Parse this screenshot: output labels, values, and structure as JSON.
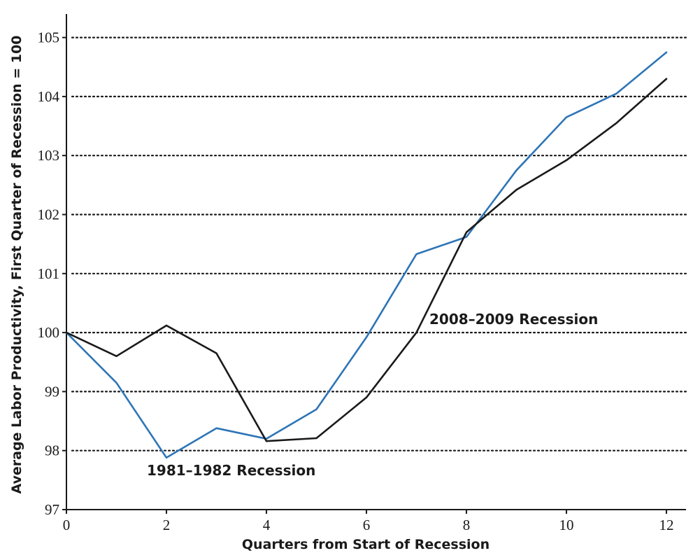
{
  "chart_data": {
    "type": "line",
    "xlabel": "Quarters from Start of Recession",
    "ylabel": "Average Labor Productivity, First Quarter of Recession = 100",
    "xlim": [
      0,
      12.3
    ],
    "ylim": [
      97,
      105.4
    ],
    "x_ticks": [
      0,
      2,
      4,
      6,
      8,
      10,
      12
    ],
    "y_ticks": [
      97,
      98,
      99,
      100,
      101,
      102,
      103,
      104,
      105
    ],
    "grid": "horizontal dotted",
    "x": [
      0,
      1,
      2,
      3,
      4,
      5,
      6,
      7,
      8,
      9,
      10,
      11,
      12
    ],
    "series": [
      {
        "name": "1981–1982 Recession",
        "color": "#2e75b6",
        "values": [
          100.0,
          99.15,
          97.88,
          98.38,
          98.2,
          98.7,
          99.92,
          101.33,
          101.62,
          102.75,
          103.65,
          104.05,
          104.75
        ]
      },
      {
        "name": "2008–2009 Recession",
        "color": "#1a1a1a",
        "values": [
          100.0,
          99.6,
          100.12,
          99.65,
          98.16,
          98.21,
          98.9,
          100.0,
          101.7,
          102.42,
          102.92,
          103.55,
          104.3
        ]
      }
    ],
    "annotations": [
      {
        "text": "1981–1982 Recession",
        "series": 0
      },
      {
        "text": "2008–2009 Recession",
        "series": 1
      }
    ]
  }
}
